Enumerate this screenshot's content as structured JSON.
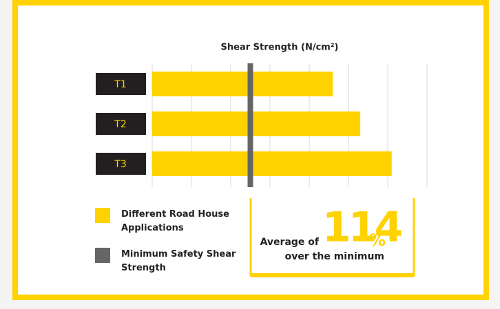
{
  "chart_data": {
    "type": "bar",
    "orientation": "horizontal",
    "title": "Shear Strength (N/cm²)",
    "categories": [
      "T1",
      "T2",
      "T3"
    ],
    "series": [
      {
        "name": "Different Road House Applications",
        "color": "#ffd200",
        "values": [
          4.6,
          5.3,
          6.1
        ]
      }
    ],
    "reference_line": {
      "name": "Minimum Safety Shear Strength",
      "color": "#666666",
      "value": 2.5
    },
    "xlim": [
      0,
      7
    ],
    "xticks": [
      0,
      1,
      2,
      3,
      4,
      5,
      6,
      7
    ],
    "grid": true,
    "annotation": {
      "prefix": "Average of",
      "value": 114,
      "unit": "%",
      "suffix": "over the minimum"
    }
  }
}
